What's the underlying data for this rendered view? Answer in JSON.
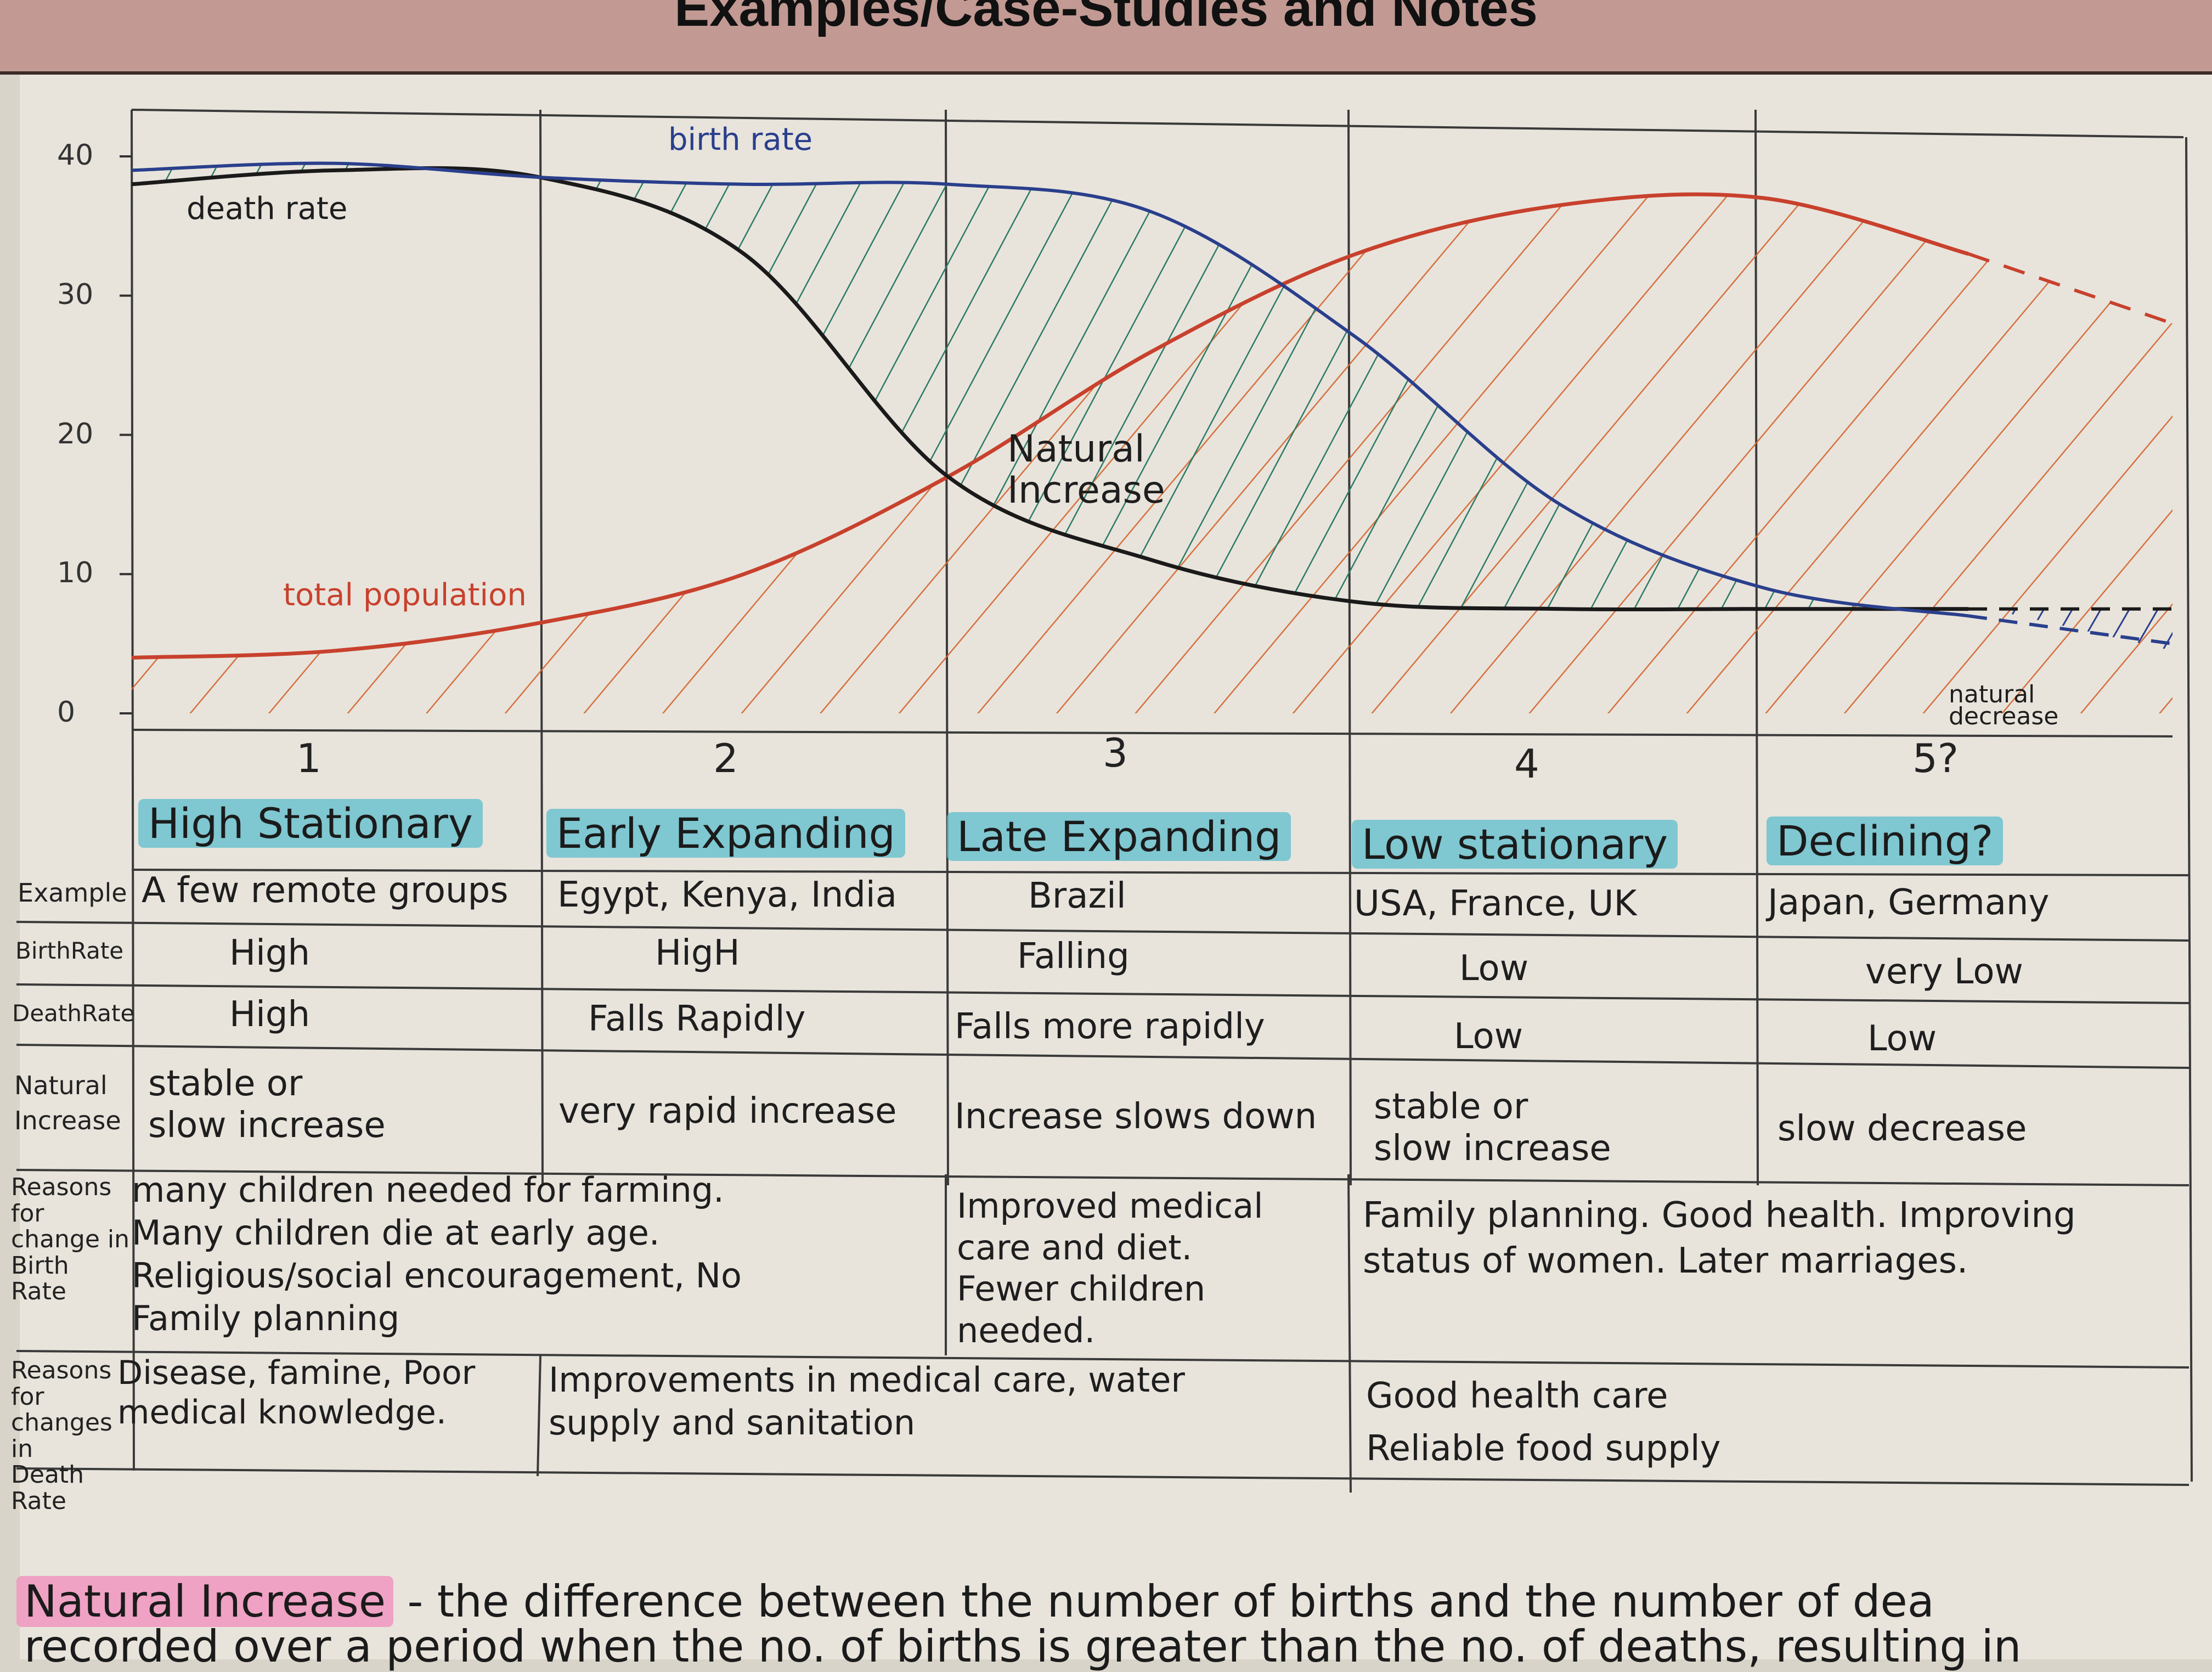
{
  "header": {
    "title": "Examples/Case-Studies and Notes"
  },
  "chart_data": {
    "type": "line",
    "y_ticks": [
      "40",
      "30",
      "20",
      "10",
      "0"
    ],
    "stages": [
      "1",
      "2",
      "3",
      "4",
      "5?"
    ],
    "annotations": {
      "birth_rate": "birth rate",
      "death_rate": "death rate",
      "total_population": "total population",
      "natural_increase": [
        "Natural",
        "Increase"
      ],
      "natural_decrease": [
        "natural",
        "decrease"
      ]
    },
    "series": [
      {
        "name": "birth rate",
        "color": "#2a3f8c",
        "x": [
          0,
          0.5,
          1,
          1.5,
          2,
          2.5,
          3,
          3.5,
          4,
          4.5,
          5
        ],
        "y": [
          39,
          39.5,
          38.5,
          38,
          38,
          36,
          27,
          15,
          9,
          7,
          5
        ]
      },
      {
        "name": "death rate",
        "color": "#1a1a1a",
        "x": [
          0,
          0.5,
          1,
          1.5,
          2,
          2.5,
          3,
          3.5,
          4,
          4.5,
          5
        ],
        "y": [
          38,
          39,
          38.5,
          33,
          17,
          11,
          8,
          7.5,
          7.5,
          7.5,
          7.5
        ]
      },
      {
        "name": "total population",
        "color": "#c8412d",
        "x": [
          0,
          0.5,
          1,
          1.5,
          2,
          2.5,
          3,
          3.5,
          4,
          4.5,
          5
        ],
        "y": [
          4,
          4.5,
          6.5,
          10,
          17,
          26,
          33,
          36.5,
          37,
          33,
          28
        ]
      }
    ]
  },
  "table": {
    "stage_names": [
      "High Stationary",
      "Early Expanding",
      "Late Expanding",
      "Low stationary",
      "Declining?"
    ],
    "row_labels": {
      "example": "Example",
      "birth_rate": "BirthRate",
      "death_rate": "DeathRate",
      "natural_increase": [
        "Natural",
        "Increase"
      ],
      "reasons_birth": [
        "Reasons",
        "for",
        "change in",
        "Birth",
        "Rate"
      ],
      "reasons_death": [
        "Reasons",
        "for",
        "changes",
        "in",
        "Death",
        "Rate"
      ]
    },
    "example": [
      "A few remote groups",
      "Egypt, Kenya, India",
      "Brazil",
      "USA, France, UK",
      "Japan, Germany"
    ],
    "birth_rate": [
      "High",
      "HigH",
      "Falling",
      "Low",
      "very Low"
    ],
    "death_rate": [
      "High",
      "Falls Rapidly",
      "Falls more rapidly",
      "Low",
      "Low"
    ],
    "natural_increase": [
      [
        "stable or",
        "slow increase"
      ],
      [
        "very rapid increase"
      ],
      [
        "Increase slows down"
      ],
      [
        "stable or",
        "slow increase"
      ],
      [
        "slow decrease"
      ]
    ],
    "reasons_birth": [
      [
        "many children needed for farming.",
        "Many children die at early age.",
        "Religious/social encouragement, No",
        "Family planning"
      ],
      [
        "Improved medical",
        "care and diet.",
        "Fewer children",
        "needed."
      ],
      [
        "Family planning. Good health. Improving",
        "status of women. Later marriages."
      ]
    ],
    "reasons_death": [
      [
        "Disease, famine, Poor",
        "medical knowledge."
      ],
      [
        "Improvements in medical care, water",
        "supply and sanitation"
      ],
      [
        "Good health care",
        "Reliable food supply"
      ]
    ]
  },
  "footnote": {
    "term": "Natural Increase",
    "line1": " - the difference between the number of births and the number of dea",
    "line2": "recorded over a period when the no. of births is greater than the no. of deaths, resulting in"
  }
}
